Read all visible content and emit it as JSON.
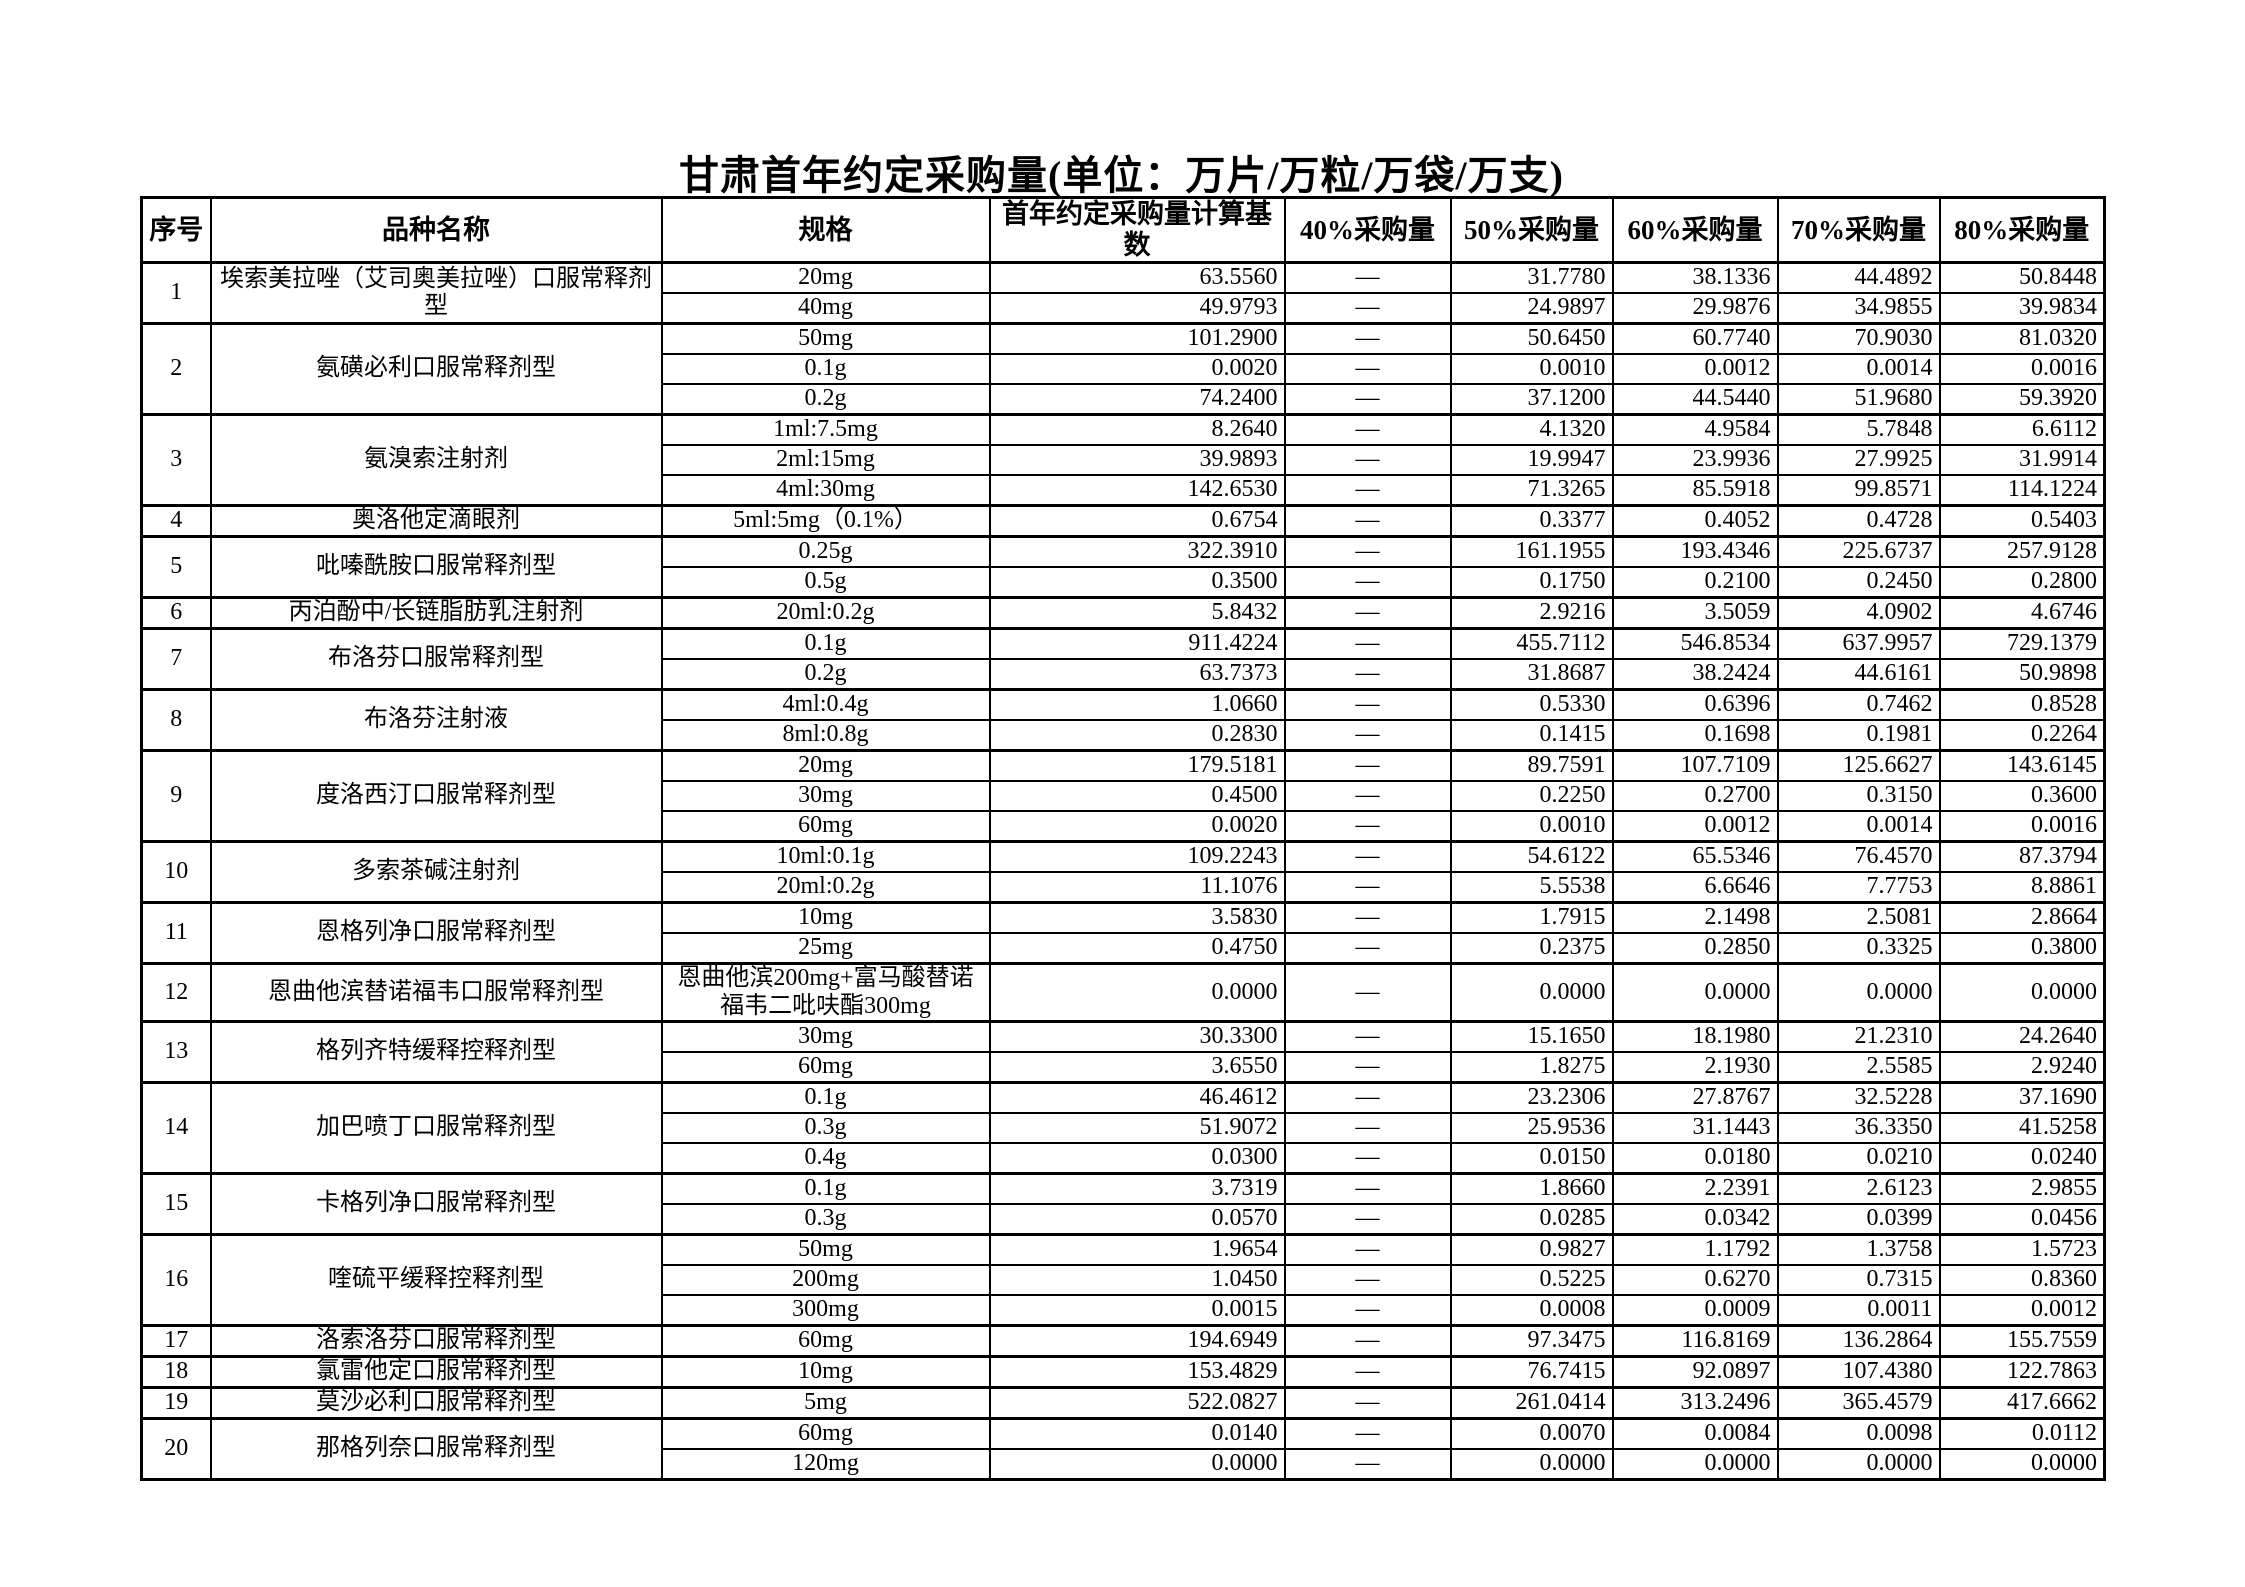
{
  "title": "甘肃首年约定采购量(单位：万片/万粒/万袋/万支)",
  "table": {
    "headers": [
      "序号",
      "品种名称",
      "规格",
      "首年约定采购量计算基数",
      "40%采购量",
      "50%采购量",
      "60%采购量",
      "70%采购量",
      "80%采购量"
    ],
    "groups": [
      {
        "no": "1",
        "name": "埃索美拉唑（艾司奥美拉唑）口服常释剂型",
        "rows": [
          {
            "spec": "20mg",
            "base": "63.5560",
            "p40": "—",
            "p50": "31.7780",
            "p60": "38.1336",
            "p70": "44.4892",
            "p80": "50.8448"
          },
          {
            "spec": "40mg",
            "base": "49.9793",
            "p40": "—",
            "p50": "24.9897",
            "p60": "29.9876",
            "p70": "34.9855",
            "p80": "39.9834"
          }
        ]
      },
      {
        "no": "2",
        "name": "氨磺必利口服常释剂型",
        "rows": [
          {
            "spec": "50mg",
            "base": "101.2900",
            "p40": "—",
            "p50": "50.6450",
            "p60": "60.7740",
            "p70": "70.9030",
            "p80": "81.0320"
          },
          {
            "spec": "0.1g",
            "base": "0.0020",
            "p40": "—",
            "p50": "0.0010",
            "p60": "0.0012",
            "p70": "0.0014",
            "p80": "0.0016"
          },
          {
            "spec": "0.2g",
            "base": "74.2400",
            "p40": "—",
            "p50": "37.1200",
            "p60": "44.5440",
            "p70": "51.9680",
            "p80": "59.3920"
          }
        ]
      },
      {
        "no": "3",
        "name": "氨溴索注射剂",
        "rows": [
          {
            "spec": "1ml:7.5mg",
            "base": "8.2640",
            "p40": "—",
            "p50": "4.1320",
            "p60": "4.9584",
            "p70": "5.7848",
            "p80": "6.6112"
          },
          {
            "spec": "2ml:15mg",
            "base": "39.9893",
            "p40": "—",
            "p50": "19.9947",
            "p60": "23.9936",
            "p70": "27.9925",
            "p80": "31.9914"
          },
          {
            "spec": "4ml:30mg",
            "base": "142.6530",
            "p40": "—",
            "p50": "71.3265",
            "p60": "85.5918",
            "p70": "99.8571",
            "p80": "114.1224"
          }
        ]
      },
      {
        "no": "4",
        "name": "奥洛他定滴眼剂",
        "rows": [
          {
            "spec": "5ml:5mg（0.1%）",
            "base": "0.6754",
            "p40": "—",
            "p50": "0.3377",
            "p60": "0.4052",
            "p70": "0.4728",
            "p80": "0.5403"
          }
        ]
      },
      {
        "no": "5",
        "name": "吡嗪酰胺口服常释剂型",
        "rows": [
          {
            "spec": "0.25g",
            "base": "322.3910",
            "p40": "—",
            "p50": "161.1955",
            "p60": "193.4346",
            "p70": "225.6737",
            "p80": "257.9128"
          },
          {
            "spec": "0.5g",
            "base": "0.3500",
            "p40": "—",
            "p50": "0.1750",
            "p60": "0.2100",
            "p70": "0.2450",
            "p80": "0.2800"
          }
        ]
      },
      {
        "no": "6",
        "name": "丙泊酚中/长链脂肪乳注射剂",
        "rows": [
          {
            "spec": "20ml:0.2g",
            "base": "5.8432",
            "p40": "—",
            "p50": "2.9216",
            "p60": "3.5059",
            "p70": "4.0902",
            "p80": "4.6746"
          }
        ]
      },
      {
        "no": "7",
        "name": "布洛芬口服常释剂型",
        "rows": [
          {
            "spec": "0.1g",
            "base": "911.4224",
            "p40": "—",
            "p50": "455.7112",
            "p60": "546.8534",
            "p70": "637.9957",
            "p80": "729.1379"
          },
          {
            "spec": "0.2g",
            "base": "63.7373",
            "p40": "—",
            "p50": "31.8687",
            "p60": "38.2424",
            "p70": "44.6161",
            "p80": "50.9898"
          }
        ]
      },
      {
        "no": "8",
        "name": "布洛芬注射液",
        "rows": [
          {
            "spec": "4ml:0.4g",
            "base": "1.0660",
            "p40": "—",
            "p50": "0.5330",
            "p60": "0.6396",
            "p70": "0.7462",
            "p80": "0.8528"
          },
          {
            "spec": "8ml:0.8g",
            "base": "0.2830",
            "p40": "—",
            "p50": "0.1415",
            "p60": "0.1698",
            "p70": "0.1981",
            "p80": "0.2264"
          }
        ]
      },
      {
        "no": "9",
        "name": "度洛西汀口服常释剂型",
        "rows": [
          {
            "spec": "20mg",
            "base": "179.5181",
            "p40": "—",
            "p50": "89.7591",
            "p60": "107.7109",
            "p70": "125.6627",
            "p80": "143.6145"
          },
          {
            "spec": "30mg",
            "base": "0.4500",
            "p40": "—",
            "p50": "0.2250",
            "p60": "0.2700",
            "p70": "0.3150",
            "p80": "0.3600"
          },
          {
            "spec": "60mg",
            "base": "0.0020",
            "p40": "—",
            "p50": "0.0010",
            "p60": "0.0012",
            "p70": "0.0014",
            "p80": "0.0016"
          }
        ]
      },
      {
        "no": "10",
        "name": "多索茶碱注射剂",
        "rows": [
          {
            "spec": "10ml:0.1g",
            "base": "109.2243",
            "p40": "—",
            "p50": "54.6122",
            "p60": "65.5346",
            "p70": "76.4570",
            "p80": "87.3794"
          },
          {
            "spec": "20ml:0.2g",
            "base": "11.1076",
            "p40": "—",
            "p50": "5.5538",
            "p60": "6.6646",
            "p70": "7.7753",
            "p80": "8.8861"
          }
        ]
      },
      {
        "no": "11",
        "name": "恩格列净口服常释剂型",
        "rows": [
          {
            "spec": "10mg",
            "base": "3.5830",
            "p40": "—",
            "p50": "1.7915",
            "p60": "2.1498",
            "p70": "2.5081",
            "p80": "2.8664"
          },
          {
            "spec": "25mg",
            "base": "0.4750",
            "p40": "—",
            "p50": "0.2375",
            "p60": "0.2850",
            "p70": "0.3325",
            "p80": "0.3800"
          }
        ]
      },
      {
        "no": "12",
        "name": "恩曲他滨替诺福韦口服常释剂型",
        "rows": [
          {
            "spec": "恩曲他滨200mg+富马酸替诺福韦二吡呋酯300mg",
            "base": "0.0000",
            "p40": "—",
            "p50": "0.0000",
            "p60": "0.0000",
            "p70": "0.0000",
            "p80": "0.0000"
          }
        ]
      },
      {
        "no": "13",
        "name": "格列齐特缓释控释剂型",
        "rows": [
          {
            "spec": "30mg",
            "base": "30.3300",
            "p40": "—",
            "p50": "15.1650",
            "p60": "18.1980",
            "p70": "21.2310",
            "p80": "24.2640"
          },
          {
            "spec": "60mg",
            "base": "3.6550",
            "p40": "—",
            "p50": "1.8275",
            "p60": "2.1930",
            "p70": "2.5585",
            "p80": "2.9240"
          }
        ]
      },
      {
        "no": "14",
        "name": "加巴喷丁口服常释剂型",
        "rows": [
          {
            "spec": "0.1g",
            "base": "46.4612",
            "p40": "—",
            "p50": "23.2306",
            "p60": "27.8767",
            "p70": "32.5228",
            "p80": "37.1690"
          },
          {
            "spec": "0.3g",
            "base": "51.9072",
            "p40": "—",
            "p50": "25.9536",
            "p60": "31.1443",
            "p70": "36.3350",
            "p80": "41.5258"
          },
          {
            "spec": "0.4g",
            "base": "0.0300",
            "p40": "—",
            "p50": "0.0150",
            "p60": "0.0180",
            "p70": "0.0210",
            "p80": "0.0240"
          }
        ]
      },
      {
        "no": "15",
        "name": "卡格列净口服常释剂型",
        "rows": [
          {
            "spec": "0.1g",
            "base": "3.7319",
            "p40": "—",
            "p50": "1.8660",
            "p60": "2.2391",
            "p70": "2.6123",
            "p80": "2.9855"
          },
          {
            "spec": "0.3g",
            "base": "0.0570",
            "p40": "—",
            "p50": "0.0285",
            "p60": "0.0342",
            "p70": "0.0399",
            "p80": "0.0456"
          }
        ]
      },
      {
        "no": "16",
        "name": "喹硫平缓释控释剂型",
        "rows": [
          {
            "spec": "50mg",
            "base": "1.9654",
            "p40": "—",
            "p50": "0.9827",
            "p60": "1.1792",
            "p70": "1.3758",
            "p80": "1.5723"
          },
          {
            "spec": "200mg",
            "base": "1.0450",
            "p40": "—",
            "p50": "0.5225",
            "p60": "0.6270",
            "p70": "0.7315",
            "p80": "0.8360"
          },
          {
            "spec": "300mg",
            "base": "0.0015",
            "p40": "—",
            "p50": "0.0008",
            "p60": "0.0009",
            "p70": "0.0011",
            "p80": "0.0012"
          }
        ]
      },
      {
        "no": "17",
        "name": "洛索洛芬口服常释剂型",
        "rows": [
          {
            "spec": "60mg",
            "base": "194.6949",
            "p40": "—",
            "p50": "97.3475",
            "p60": "116.8169",
            "p70": "136.2864",
            "p80": "155.7559"
          }
        ]
      },
      {
        "no": "18",
        "name": "氯雷他定口服常释剂型",
        "rows": [
          {
            "spec": "10mg",
            "base": "153.4829",
            "p40": "—",
            "p50": "76.7415",
            "p60": "92.0897",
            "p70": "107.4380",
            "p80": "122.7863"
          }
        ]
      },
      {
        "no": "19",
        "name": "莫沙必利口服常释剂型",
        "rows": [
          {
            "spec": "5mg",
            "base": "522.0827",
            "p40": "—",
            "p50": "261.0414",
            "p60": "313.2496",
            "p70": "365.4579",
            "p80": "417.6662"
          }
        ]
      },
      {
        "no": "20",
        "name": "那格列奈口服常释剂型",
        "rows": [
          {
            "spec": "60mg",
            "base": "0.0140",
            "p40": "—",
            "p50": "0.0070",
            "p60": "0.0084",
            "p70": "0.0098",
            "p80": "0.0112"
          },
          {
            "spec": "120mg",
            "base": "0.0000",
            "p40": "—",
            "p50": "0.0000",
            "p60": "0.0000",
            "p70": "0.0000",
            "p80": "0.0000"
          }
        ]
      }
    ]
  }
}
